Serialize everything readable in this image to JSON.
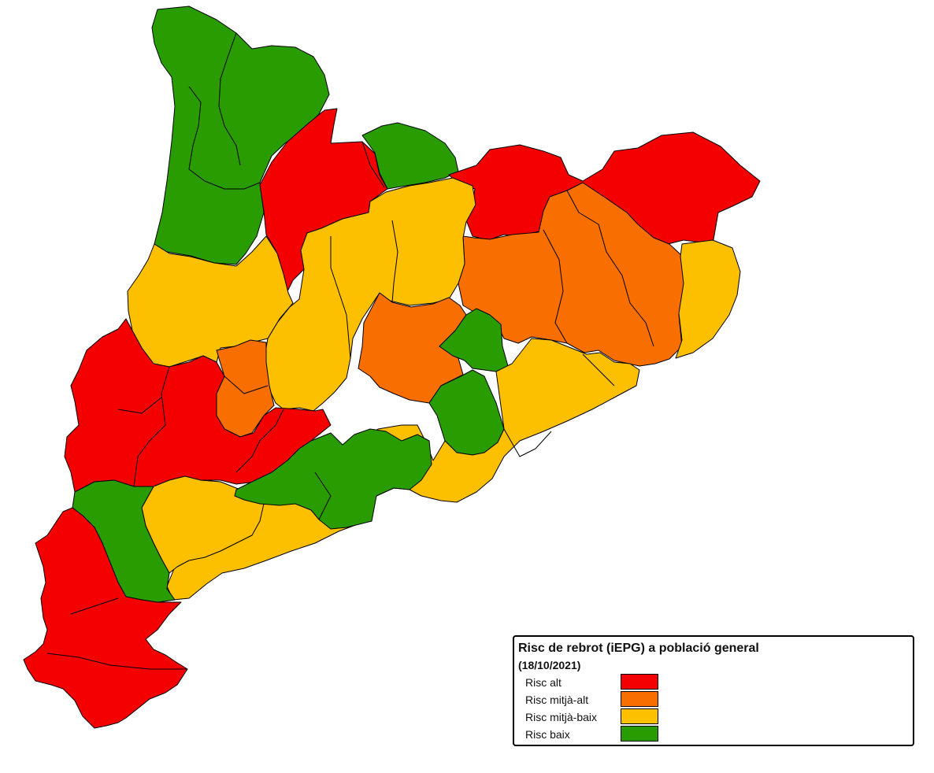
{
  "legend": {
    "title": "Risc de rebrot (iEPG) a població general",
    "date": "(18/10/2021)",
    "items": [
      {
        "label": "Risc alt",
        "color": "#f50000"
      },
      {
        "label": "Risc mitjà-alt",
        "color": "#f86f00"
      },
      {
        "label": "Risc mitjà-baix",
        "color": "#fcc000"
      },
      {
        "label": "Risc baix",
        "color": "#289c00"
      }
    ]
  }
}
